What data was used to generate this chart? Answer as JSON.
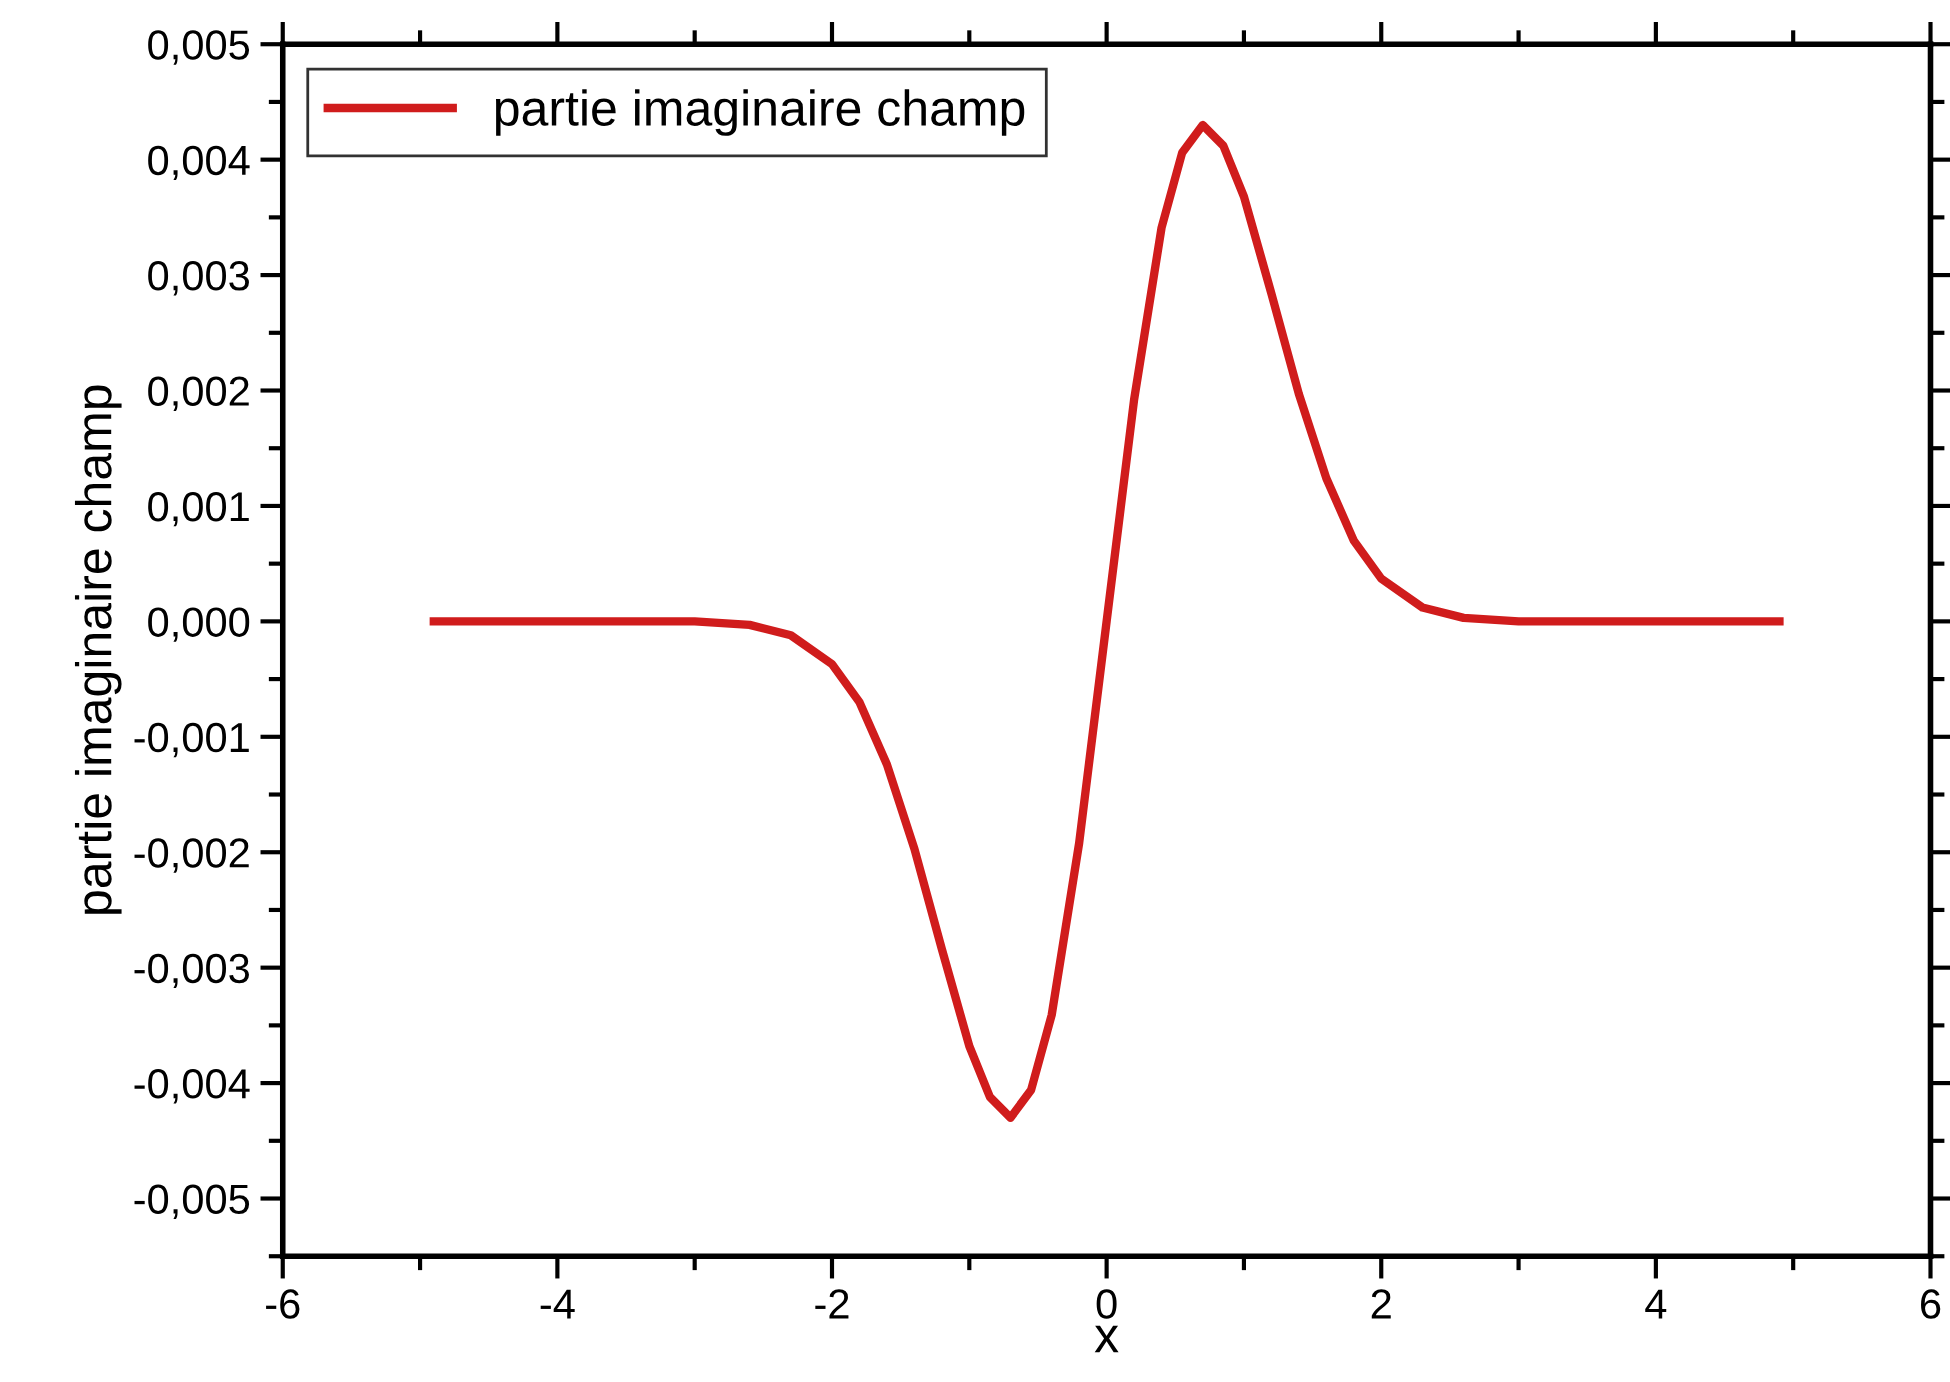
{
  "chart_data": {
    "type": "line",
    "xlabel": "x",
    "ylabel": "partie imaginaire champ",
    "x": [
      -4.9,
      -4,
      -3,
      -2.6,
      -2.3,
      -2,
      -1.8,
      -1.6,
      -1.4,
      -1.2,
      -1.0,
      -0.85,
      -0.7,
      -0.55,
      -0.4,
      -0.2,
      0,
      0.2,
      0.4,
      0.55,
      0.7,
      0.85,
      1.0,
      1.2,
      1.4,
      1.6,
      1.8,
      2.0,
      2.3,
      2.6,
      3,
      4,
      4.9
    ],
    "series": [
      {
        "name": "partie imaginaire champ",
        "color": "#d01c1c",
        "values": [
          0,
          0,
          0,
          -3e-05,
          -0.00012,
          -0.00037,
          -0.0007,
          -0.00124,
          -0.00197,
          -0.00284,
          -0.00368,
          -0.00412,
          -0.0043,
          -0.00406,
          -0.00341,
          -0.00192,
          0,
          0.00192,
          0.00341,
          0.00406,
          0.0043,
          0.00412,
          0.00368,
          0.00284,
          0.00197,
          0.00124,
          0.0007,
          0.00037,
          0.00012,
          3e-05,
          0,
          0,
          0
        ]
      }
    ],
    "xlim": [
      -6,
      6
    ],
    "xticks": [
      -6,
      -4,
      -2,
      0,
      2,
      4,
      6
    ],
    "ylim": [
      -0.0055,
      0.005
    ],
    "yticks": [
      {
        "value": -0.005,
        "label": "-0,005"
      },
      {
        "value": -0.004,
        "label": "-0,004"
      },
      {
        "value": -0.003,
        "label": "-0,003"
      },
      {
        "value": -0.002,
        "label": "-0,002"
      },
      {
        "value": -0.001,
        "label": "-0,001"
      },
      {
        "value": 0.0,
        "label": "0,000"
      },
      {
        "value": 0.001,
        "label": "0,001"
      },
      {
        "value": 0.002,
        "label": "0,002"
      },
      {
        "value": 0.003,
        "label": "0,003"
      },
      {
        "value": 0.004,
        "label": "0,004"
      },
      {
        "value": 0.005,
        "label": "0,005"
      }
    ],
    "legend": "top left",
    "grid": false,
    "marker": "none",
    "line_style": "solid"
  }
}
